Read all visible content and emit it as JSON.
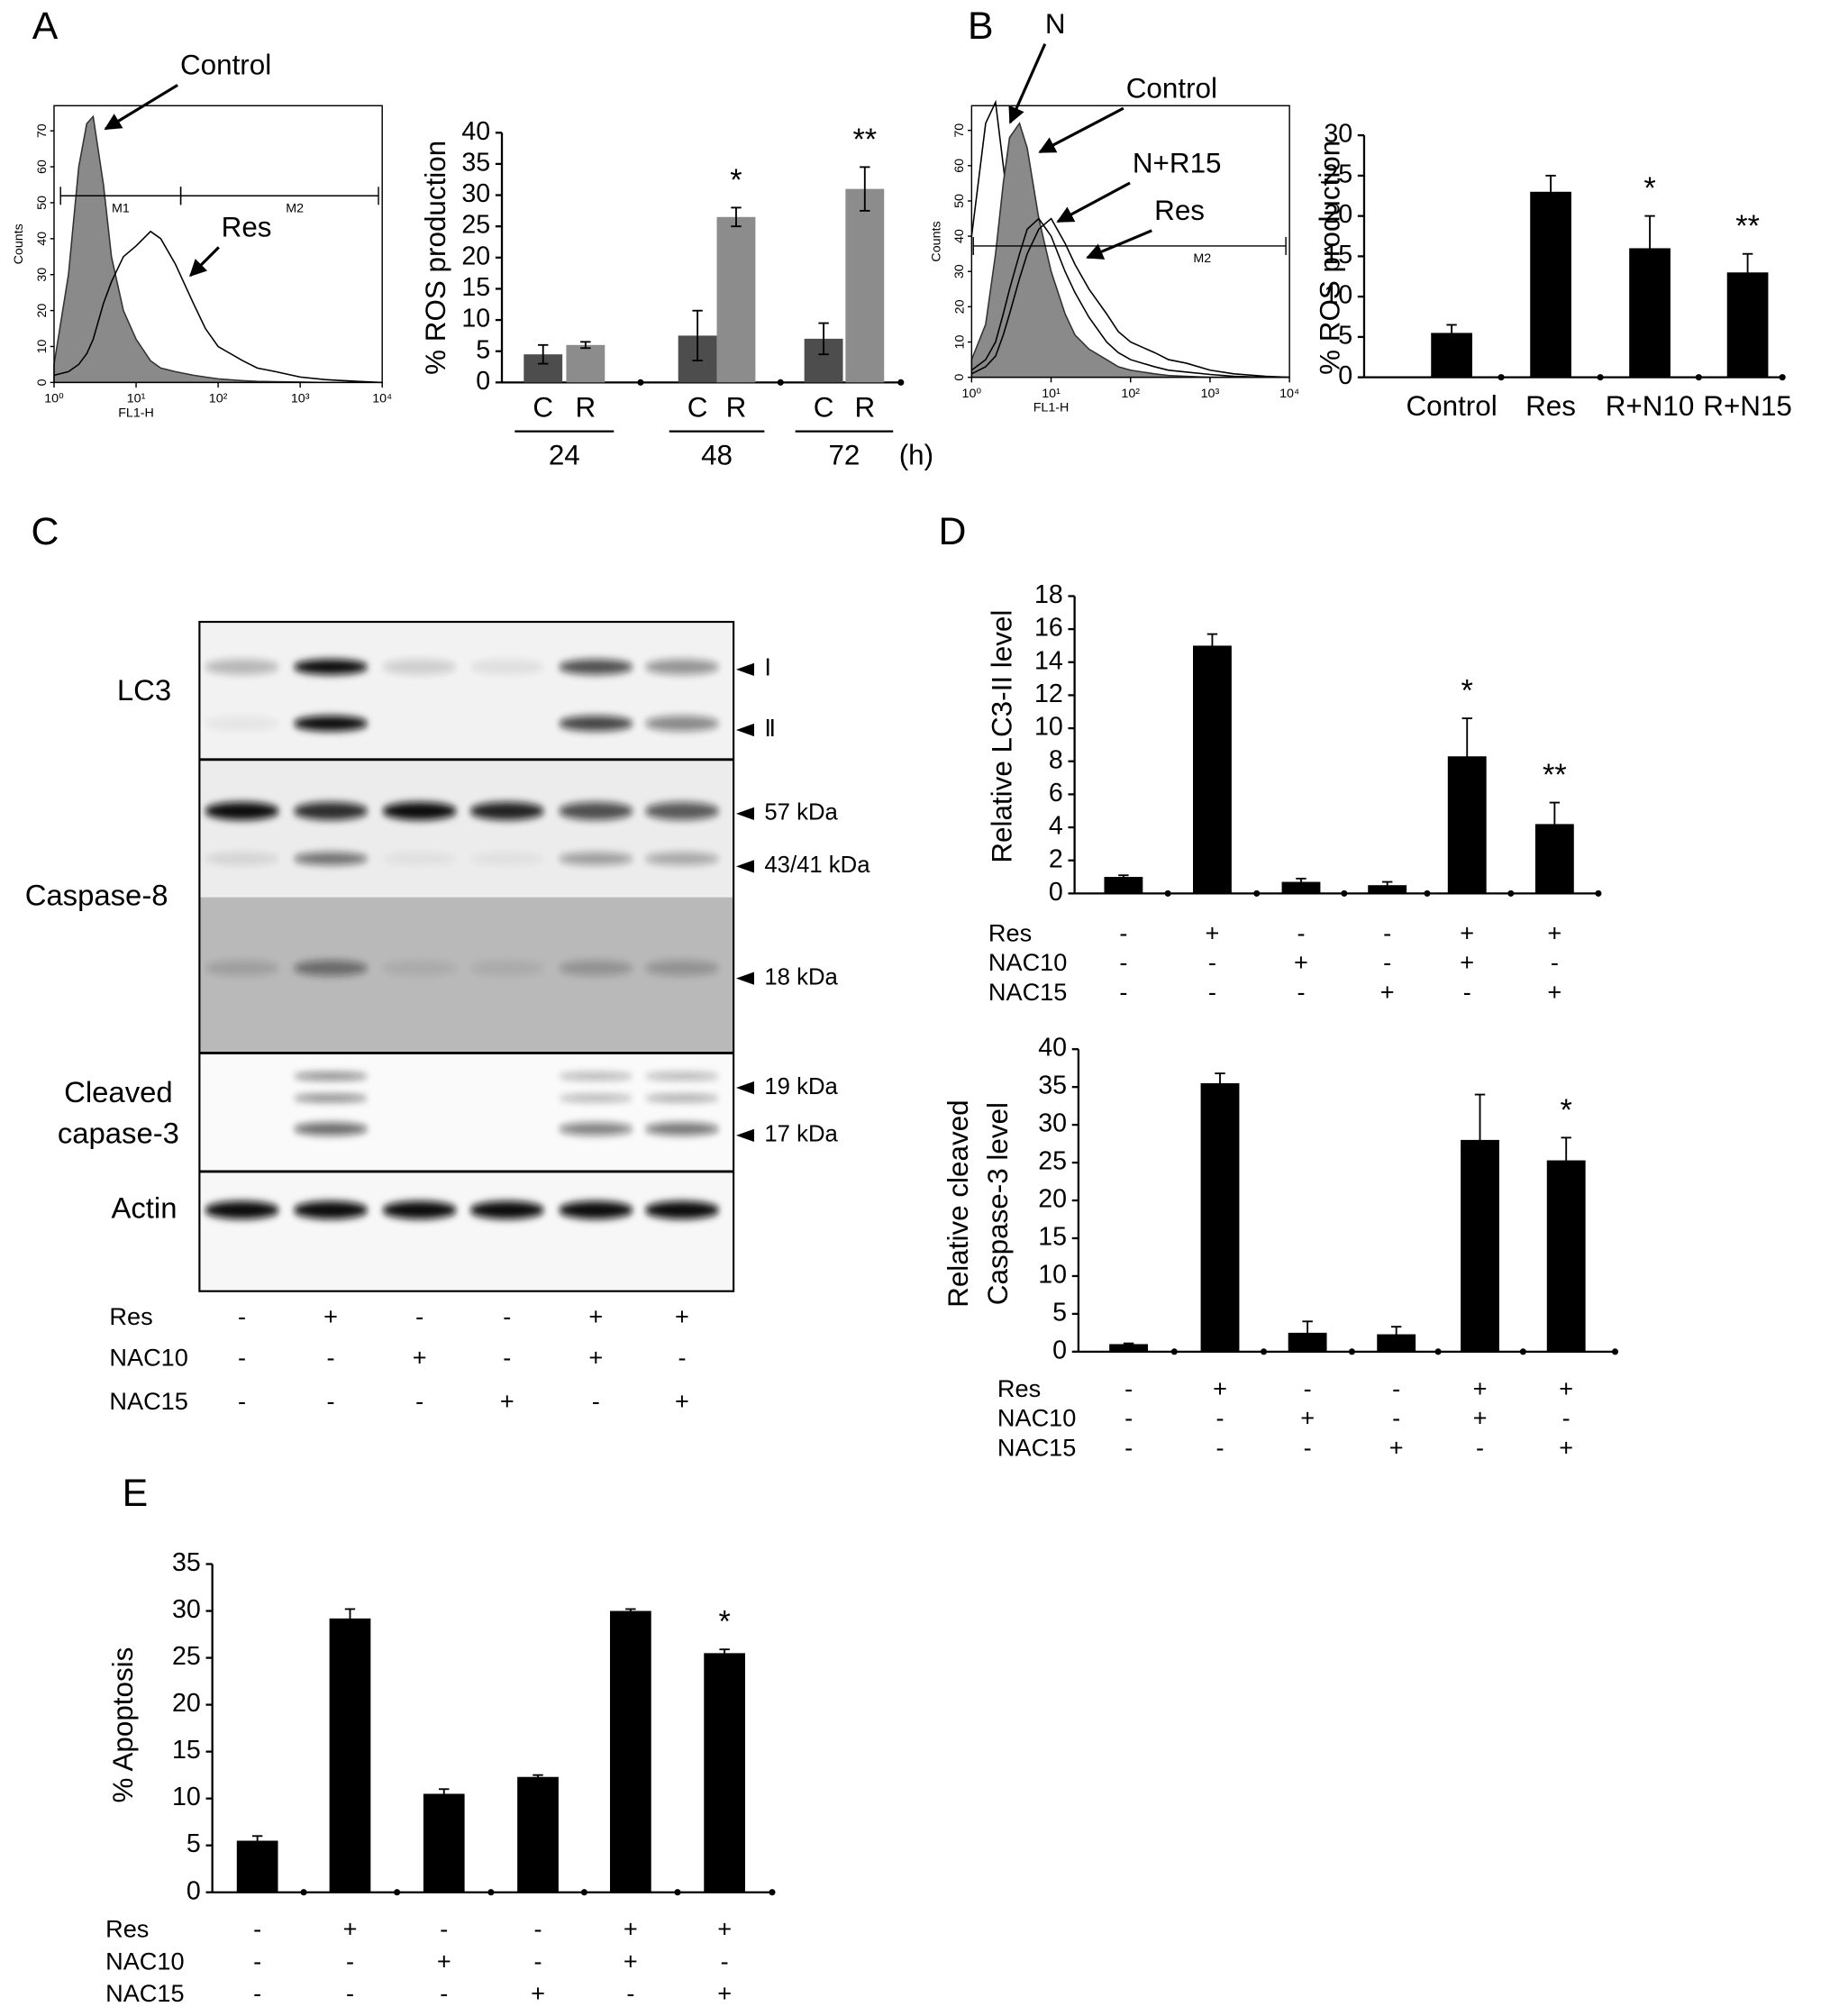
{
  "panel_labels": [
    "A",
    "B",
    "C",
    "D",
    "E"
  ],
  "chart_data": [
    {
      "type": "flow-histogram",
      "x_label": "FL1-H",
      "y_label": "Counts",
      "log_x": true,
      "xlim": [
        1,
        10000
      ],
      "xticks": [
        {
          "value": 1,
          "label": "10⁰"
        },
        {
          "value": 10,
          "label": "10¹"
        },
        {
          "value": 100,
          "label": "10²"
        },
        {
          "value": 1000,
          "label": "10³"
        },
        {
          "value": 10000,
          "label": "10⁴"
        }
      ],
      "ylim": [
        0,
        77
      ],
      "yticks": [
        0,
        10,
        20,
        30,
        40,
        50,
        60,
        70
      ],
      "x": [
        1,
        1.5,
        2,
        2.5,
        3,
        4,
        5,
        7,
        10,
        15,
        20,
        30,
        50,
        70,
        100,
        200,
        300,
        500,
        1000,
        2000,
        5000,
        10000
      ],
      "series": [
        {
          "name": "Control",
          "color": "#8a8a8a",
          "filled": true,
          "values": [
            5,
            30,
            60,
            72,
            74,
            55,
            35,
            20,
            12,
            6,
            4,
            3,
            2,
            1.5,
            1,
            0.5,
            0.3,
            0.2,
            0.1,
            0,
            0,
            0
          ]
        },
        {
          "name": "Res",
          "color": "#000000",
          "filled": false,
          "values": [
            2,
            3,
            5,
            8,
            12,
            22,
            28,
            35,
            38,
            42,
            40,
            33,
            22,
            15,
            10,
            6,
            4,
            3,
            1.5,
            0.8,
            0.3,
            0
          ]
        }
      ],
      "gates": [
        {
          "label": "M1",
          "range": [
            1.2,
            35
          ]
        },
        {
          "label": "M2",
          "range": [
            35,
            9000
          ]
        }
      ]
    },
    {
      "type": "bar",
      "y_label": "% ROS production",
      "categories": [
        "24",
        "48",
        "72"
      ],
      "x_unit": "(h)",
      "ylim": [
        0,
        40
      ],
      "yticks": [
        0,
        5,
        10,
        15,
        20,
        25,
        30,
        35,
        40
      ],
      "series": [
        {
          "name": "C",
          "color": "#4d4d4d",
          "values": [
            4.5,
            7.5,
            7
          ],
          "errors": [
            1.5,
            4,
            2.5
          ],
          "significance": [
            null,
            null,
            null
          ]
        },
        {
          "name": "R",
          "color": "#8c8c8c",
          "values": [
            6,
            26.5,
            31
          ],
          "errors": [
            0.5,
            1.5,
            3.5
          ],
          "significance": [
            null,
            "*",
            "**"
          ]
        }
      ]
    },
    {
      "type": "flow-histogram",
      "x_label": "FL1-H",
      "y_label": "Counts",
      "log_x": true,
      "xlim": [
        1,
        10000
      ],
      "xticks": [
        {
          "value": 1,
          "label": "10⁰"
        },
        {
          "value": 10,
          "label": "10¹"
        },
        {
          "value": 100,
          "label": "10²"
        },
        {
          "value": 1000,
          "label": "10³"
        },
        {
          "value": 10000,
          "label": "10⁴"
        }
      ],
      "ylim": [
        0,
        77
      ],
      "yticks": [
        0,
        10,
        20,
        30,
        40,
        50,
        60,
        70
      ],
      "x": [
        1,
        1.5,
        2,
        2.5,
        3,
        4,
        5,
        7,
        10,
        15,
        20,
        30,
        50,
        70,
        100,
        200,
        300,
        500,
        1000,
        2000,
        5000,
        10000
      ],
      "series": [
        {
          "name": "N",
          "color": "#000000",
          "filled": false,
          "values": [
            40,
            72,
            78,
            60,
            45,
            30,
            20,
            12,
            8,
            5,
            4,
            3,
            2,
            1.5,
            1,
            0.5,
            0.3,
            0.2,
            0,
            0,
            0,
            0
          ]
        },
        {
          "name": "Control",
          "color": "#8a8a8a",
          "filled": true,
          "values": [
            5,
            15,
            35,
            55,
            68,
            72,
            65,
            45,
            30,
            18,
            12,
            8,
            5,
            3,
            2,
            1,
            0.5,
            0.3,
            0,
            0,
            0,
            0
          ]
        },
        {
          "name": "N+R15",
          "color": "#000000",
          "filled": false,
          "values": [
            2,
            5,
            10,
            18,
            25,
            35,
            42,
            45,
            40,
            30,
            24,
            17,
            10,
            7,
            5,
            3,
            2,
            1.5,
            0.8,
            0.3,
            0,
            0
          ]
        },
        {
          "name": "Res",
          "color": "#000000",
          "filled": false,
          "values": [
            1,
            3,
            6,
            12,
            18,
            28,
            35,
            42,
            45,
            38,
            32,
            25,
            18,
            13,
            10,
            7,
            5,
            4,
            2,
            1,
            0.3,
            0
          ]
        }
      ],
      "gates": [
        {
          "label": "M2",
          "range": [
            1.05,
            9000
          ]
        }
      ]
    },
    {
      "type": "bar",
      "y_label": "% ROS production",
      "categories": [
        "Control",
        "Res",
        "R+N10",
        "R+N15"
      ],
      "ylim": [
        0,
        30
      ],
      "yticks": [
        0,
        5,
        10,
        15,
        20,
        25,
        30
      ],
      "color": "#000000",
      "values": [
        5.5,
        23,
        16,
        13
      ],
      "errors": [
        1,
        2,
        4,
        2.3
      ],
      "significance": [
        null,
        null,
        "*",
        "**"
      ]
    },
    {
      "type": "bar",
      "y_label": [
        "Relative LC3-II level"
      ],
      "ylim": [
        0,
        18
      ],
      "yticks": [
        0,
        2,
        4,
        6,
        8,
        10,
        12,
        14,
        16,
        18
      ],
      "color": "#000000",
      "values": [
        1,
        15,
        0.7,
        0.5,
        8.3,
        4.2
      ],
      "errors": [
        0.1,
        0.7,
        0.2,
        0.2,
        2.3,
        1.3
      ],
      "significance": [
        null,
        null,
        null,
        null,
        "*",
        "**"
      ],
      "treatments": [
        {
          "name": "Res",
          "signs": [
            "-",
            "+",
            "-",
            "-",
            "+",
            "+"
          ]
        },
        {
          "name": "NAC10",
          "signs": [
            "-",
            "-",
            "+",
            "-",
            "+",
            "-"
          ]
        },
        {
          "name": "NAC15",
          "signs": [
            "-",
            "-",
            "-",
            "+",
            "-",
            "+"
          ]
        }
      ]
    },
    {
      "type": "bar",
      "y_label": [
        "Relative cleaved",
        "Caspase-3 level"
      ],
      "ylim": [
        0,
        40
      ],
      "yticks": [
        0,
        5,
        10,
        15,
        20,
        25,
        30,
        35,
        40
      ],
      "color": "#000000",
      "values": [
        1,
        35.5,
        2.5,
        2.3,
        28,
        25.3
      ],
      "errors": [
        0.1,
        1.3,
        1.5,
        1,
        6,
        3
      ],
      "significance": [
        null,
        null,
        null,
        null,
        null,
        "*"
      ],
      "treatments": [
        {
          "name": "Res",
          "signs": [
            "-",
            "+",
            "-",
            "-",
            "+",
            "+"
          ]
        },
        {
          "name": "NAC10",
          "signs": [
            "-",
            "-",
            "+",
            "-",
            "+",
            "-"
          ]
        },
        {
          "name": "NAC15",
          "signs": [
            "-",
            "-",
            "-",
            "+",
            "-",
            "+"
          ]
        }
      ]
    },
    {
      "type": "bar",
      "y_label": [
        "% Apoptosis"
      ],
      "ylim": [
        0,
        35
      ],
      "yticks": [
        0,
        5,
        10,
        15,
        20,
        25,
        30,
        35
      ],
      "color": "#000000",
      "values": [
        5.5,
        29.2,
        10.5,
        12.3,
        30,
        25.5
      ],
      "errors": [
        0.5,
        1,
        0.5,
        0.2,
        0.2,
        0.4
      ],
      "significance": [
        null,
        null,
        null,
        null,
        null,
        "*"
      ],
      "treatments": [
        {
          "name": "Res",
          "signs": [
            "-",
            "+",
            "-",
            "-",
            "+",
            "+"
          ]
        },
        {
          "name": "NAC10",
          "signs": [
            "-",
            "-",
            "+",
            "-",
            "+",
            "-"
          ]
        },
        {
          "name": "NAC15",
          "signs": [
            "-",
            "-",
            "-",
            "+",
            "-",
            "+"
          ]
        }
      ]
    }
  ],
  "western_blot": {
    "protein_labels": [
      {
        "lines": [
          "LC3"
        ]
      },
      {
        "lines": [
          "Caspase-8"
        ]
      },
      {
        "lines": [
          "Cleaved",
          "capase-3"
        ]
      },
      {
        "lines": [
          "Actin"
        ]
      }
    ],
    "band_labels": [
      "Ⅰ",
      "Ⅱ",
      "57 kDa",
      "43/41 kDa",
      "18 kDa",
      "19 kDa",
      "17 kDa"
    ],
    "treatments": [
      {
        "name": "Res",
        "signs": [
          "-",
          "+",
          "-",
          "-",
          "+",
          "+"
        ]
      },
      {
        "name": "NAC10",
        "signs": [
          "-",
          "-",
          "+",
          "-",
          "+",
          "-"
        ]
      },
      {
        "name": "NAC15",
        "signs": [
          "-",
          "-",
          "-",
          "+",
          "-",
          "+"
        ]
      }
    ]
  }
}
